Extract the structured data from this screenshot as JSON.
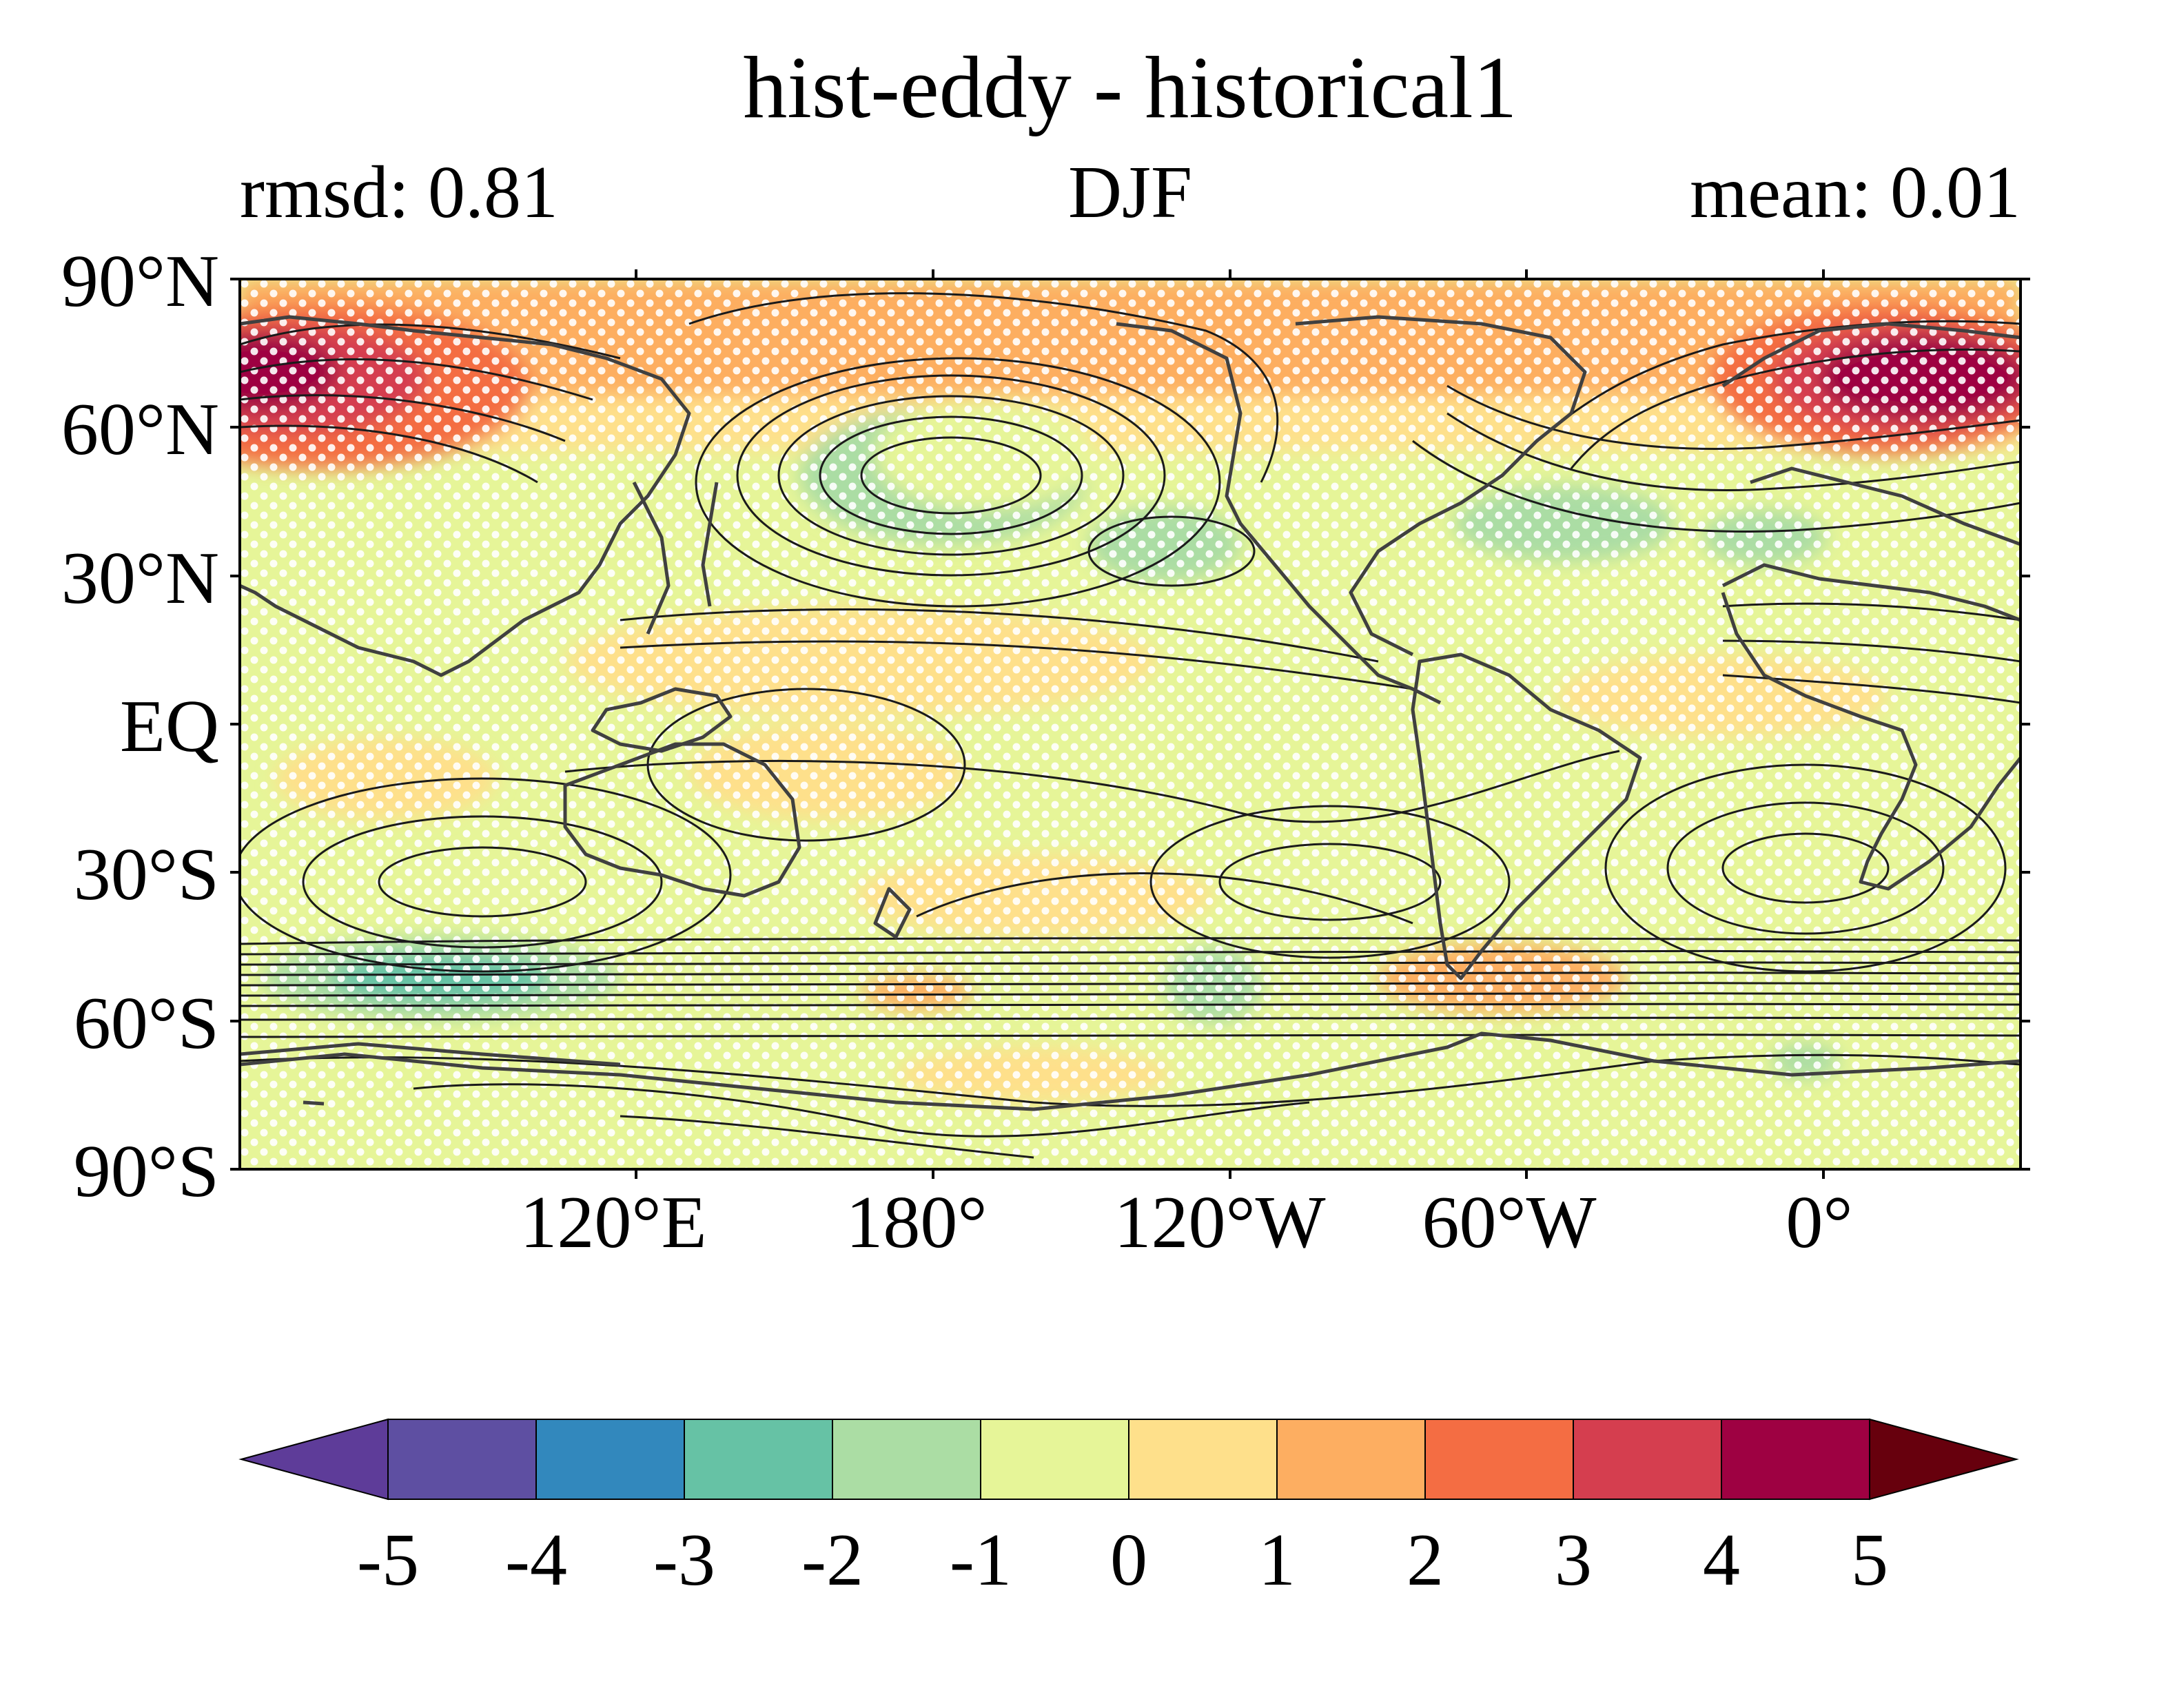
{
  "title": "hist-eddy - historical1",
  "subtitle_left": "rmsd: 0.81",
  "subtitle_center": "DJF",
  "subtitle_right": "mean: 0.01",
  "lat_labels": [
    "90°N",
    "60°N",
    "30°N",
    "EQ",
    "30°S",
    "60°S",
    "90°S"
  ],
  "lon_labels": [
    "120°E",
    "180°",
    "120°W",
    "60°W",
    "0°"
  ],
  "colorbar": {
    "ticks": [
      "-5",
      "-4",
      "-3",
      "-2",
      "-1",
      "0",
      "1",
      "2",
      "3",
      "4",
      "5"
    ],
    "colors": [
      "#5e4fa2",
      "#3288bd",
      "#66c2a5",
      "#abdda4",
      "#e6f598",
      "#fee08b",
      "#fdae61",
      "#f46d43",
      "#d53e4f",
      "#9e0142"
    ],
    "under_color": "#5e3c99",
    "over_color": "#67000d"
  },
  "colors": {
    "coastline": "#404040",
    "contour": "#1a1a1a",
    "stipple": "#ffffff"
  }
}
